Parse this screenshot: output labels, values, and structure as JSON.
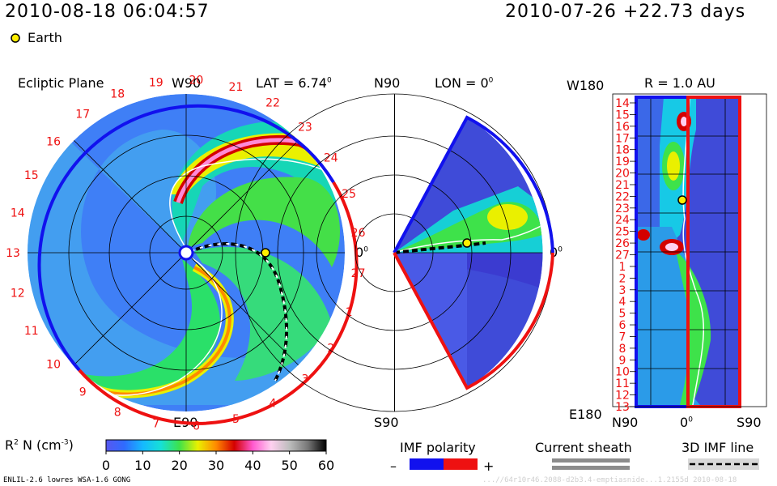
{
  "header": {
    "datetime": "2010-08-18 06:04:57",
    "ref": "2010-07-26 +22.73 days",
    "earth_legend": "Earth"
  },
  "panels": {
    "ecliptic": {
      "title": "Ecliptic Plane",
      "top_label": "W90",
      "bottom_label": "E90",
      "right_label": "0",
      "lat_label": "LAT = 6.74",
      "deg": "0"
    },
    "meridional": {
      "top_label": "N90",
      "lon_label": "LON = 0",
      "deg": "0",
      "bottom_label": "S90",
      "right_label": "0"
    },
    "radial": {
      "title": "R = 1.0 AU",
      "top_left": "W180",
      "bottom_left": "E180",
      "bottom_n": "N90",
      "bottom_zero": "0",
      "bottom_s": "S90"
    }
  },
  "colorbar": {
    "label": "R",
    "label_sup": "2",
    "label_rest": " N (cm",
    "label_exp": "-3",
    "label_close": ")",
    "ticks": [
      "0",
      "10",
      "20",
      "30",
      "40",
      "50",
      "60"
    ],
    "range": [
      0,
      60
    ],
    "stops": [
      "#5858f0",
      "#2f6bff",
      "#15b9ff",
      "#16e1d6",
      "#3ee24a",
      "#eaf000",
      "#ff8a00",
      "#d40000",
      "#ff5ad0",
      "#ffd0f0",
      "#bdbdbd",
      "#777777",
      "#000000"
    ]
  },
  "legend": {
    "imf_polarity": "IMF polarity",
    "minus": "–",
    "plus": "+",
    "current_sheath": "Current sheath",
    "imf_line": "3D IMF line"
  },
  "footer": {
    "model": "ENLIL-2.6 lowres WSA-1.6 GONG",
    "watermark": "...//64r10r46.2088-d2b3.4-emptiasnide...1.2155d      2010-08-18"
  },
  "chart_data": {
    "type": "heatmap",
    "quantity": "R^2 N (cm^-3)",
    "scale_range": [
      0,
      60
    ],
    "earth": {
      "date_offset_days": 22.73,
      "lat_deg": 6.74,
      "lon_deg": 0,
      "r_au": 1.0
    },
    "ecliptic_rotation_labels": [
      "19",
      "20",
      "21",
      "22",
      "23",
      "24",
      "25",
      "26",
      "27",
      "1",
      "2",
      "3",
      "4",
      "5",
      "6",
      "7",
      "8",
      "9",
      "10",
      "11",
      "12",
      "13",
      "14",
      "15",
      "16",
      "17",
      "18"
    ],
    "radial_date_labels": [
      "14",
      "15",
      "16",
      "17",
      "18",
      "19",
      "20",
      "21",
      "22",
      "23",
      "24",
      "25",
      "26",
      "27",
      "1",
      "2",
      "3",
      "4",
      "5",
      "6",
      "7",
      "8",
      "9",
      "10",
      "11",
      "12",
      "13"
    ]
  },
  "colors": {
    "positive_polarity": "#ee1111",
    "negative_polarity": "#1111ee",
    "earth": "#ffee00"
  }
}
